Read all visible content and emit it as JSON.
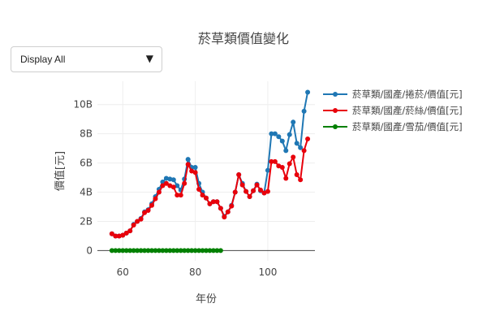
{
  "title": "菸草類價值變化",
  "dropdown": {
    "selected": "Display All",
    "arrow": "▼"
  },
  "chart_data": {
    "type": "line",
    "title": "菸草類價值變化",
    "xlabel": "年份",
    "ylabel": "價值[元]",
    "xlim": [
      53,
      113
    ],
    "ylim": [
      -700000000,
      11600000000
    ],
    "x_ticks": [
      60,
      80,
      100
    ],
    "y_ticks": [
      {
        "value": 0,
        "label": "0"
      },
      {
        "value": 2000000000,
        "label": "2B"
      },
      {
        "value": 4000000000,
        "label": "4B"
      },
      {
        "value": 6000000000,
        "label": "6B"
      },
      {
        "value": 8000000000,
        "label": "8B"
      },
      {
        "value": 10000000000,
        "label": "10B"
      }
    ],
    "grid": true,
    "legend_position": "right",
    "series": [
      {
        "name": "菸草類/國產/捲菸/價值[元]",
        "color": "#1f77b4",
        "points": [
          [
            57,
            1150000000
          ],
          [
            58,
            1000000000
          ],
          [
            59,
            1000000000
          ],
          [
            60,
            1050000000
          ],
          [
            61,
            1200000000
          ],
          [
            62,
            1350000000
          ],
          [
            63,
            1800000000
          ],
          [
            64,
            2000000000
          ],
          [
            65,
            2200000000
          ],
          [
            66,
            2650000000
          ],
          [
            67,
            2800000000
          ],
          [
            68,
            3200000000
          ],
          [
            69,
            3700000000
          ],
          [
            70,
            4200000000
          ],
          [
            71,
            4700000000
          ],
          [
            72,
            4950000000
          ],
          [
            73,
            4900000000
          ],
          [
            74,
            4850000000
          ],
          [
            75,
            4450000000
          ],
          [
            76,
            4150000000
          ],
          [
            77,
            4900000000
          ],
          [
            78,
            6250000000
          ],
          [
            79,
            5700000000
          ],
          [
            80,
            5700000000
          ],
          [
            81,
            4600000000
          ],
          [
            82,
            4000000000
          ],
          [
            83,
            3600000000
          ],
          [
            84,
            3200000000
          ],
          [
            85,
            3350000000
          ],
          [
            86,
            3350000000
          ],
          [
            87,
            2900000000
          ],
          [
            88,
            2350000000
          ],
          [
            89,
            2650000000
          ],
          [
            90,
            3100000000
          ],
          [
            91,
            4000000000
          ],
          [
            92,
            5200000000
          ],
          [
            93,
            4600000000
          ],
          [
            94,
            4050000000
          ],
          [
            95,
            3700000000
          ],
          [
            96,
            4100000000
          ],
          [
            97,
            4550000000
          ],
          [
            98,
            4100000000
          ],
          [
            99,
            3950000000
          ],
          [
            100,
            5500000000
          ],
          [
            101,
            8000000000
          ],
          [
            102,
            8000000000
          ],
          [
            103,
            7800000000
          ],
          [
            104,
            7500000000
          ],
          [
            105,
            6850000000
          ],
          [
            106,
            7950000000
          ],
          [
            107,
            8800000000
          ],
          [
            108,
            7350000000
          ],
          [
            109,
            7050000000
          ],
          [
            110,
            9550000000
          ],
          [
            111,
            10850000000
          ]
        ]
      },
      {
        "name": "菸草類/國產/菸絲/價值[元]",
        "color": "#e8000b",
        "points": [
          [
            57,
            1150000000
          ],
          [
            58,
            1000000000
          ],
          [
            59,
            1000000000
          ],
          [
            60,
            1050000000
          ],
          [
            61,
            1200000000
          ],
          [
            62,
            1350000000
          ],
          [
            63,
            1750000000
          ],
          [
            64,
            2000000000
          ],
          [
            65,
            2150000000
          ],
          [
            66,
            2600000000
          ],
          [
            67,
            2750000000
          ],
          [
            68,
            3100000000
          ],
          [
            69,
            3550000000
          ],
          [
            70,
            4000000000
          ],
          [
            71,
            4450000000
          ],
          [
            72,
            4600000000
          ],
          [
            73,
            4450000000
          ],
          [
            74,
            4350000000
          ],
          [
            75,
            3800000000
          ],
          [
            76,
            3800000000
          ],
          [
            77,
            4600000000
          ],
          [
            78,
            5900000000
          ],
          [
            79,
            5450000000
          ],
          [
            80,
            5350000000
          ],
          [
            81,
            4200000000
          ],
          [
            82,
            3800000000
          ],
          [
            83,
            3600000000
          ],
          [
            84,
            3200000000
          ],
          [
            85,
            3350000000
          ],
          [
            86,
            3350000000
          ],
          [
            87,
            2900000000
          ],
          [
            88,
            2300000000
          ],
          [
            89,
            2650000000
          ],
          [
            90,
            3050000000
          ],
          [
            91,
            4000000000
          ],
          [
            92,
            5200000000
          ],
          [
            93,
            4500000000
          ],
          [
            94,
            4050000000
          ],
          [
            95,
            3700000000
          ],
          [
            96,
            4100000000
          ],
          [
            97,
            4500000000
          ],
          [
            98,
            4150000000
          ],
          [
            99,
            3950000000
          ],
          [
            100,
            4050000000
          ],
          [
            101,
            6100000000
          ],
          [
            102,
            6100000000
          ],
          [
            103,
            5800000000
          ],
          [
            104,
            5700000000
          ],
          [
            105,
            4950000000
          ],
          [
            106,
            5950000000
          ],
          [
            107,
            6400000000
          ],
          [
            108,
            5200000000
          ],
          [
            109,
            4850000000
          ],
          [
            110,
            6850000000
          ],
          [
            111,
            7650000000
          ]
        ]
      },
      {
        "name": "菸草類/國產/雪茄/價值[元]",
        "color": "#008000",
        "points": [
          [
            57,
            0
          ],
          [
            58,
            0
          ],
          [
            59,
            0
          ],
          [
            60,
            0
          ],
          [
            61,
            0
          ],
          [
            62,
            0
          ],
          [
            63,
            0
          ],
          [
            64,
            0
          ],
          [
            65,
            0
          ],
          [
            66,
            0
          ],
          [
            67,
            0
          ],
          [
            68,
            0
          ],
          [
            69,
            0
          ],
          [
            70,
            0
          ],
          [
            71,
            0
          ],
          [
            72,
            0
          ],
          [
            73,
            0
          ],
          [
            74,
            0
          ],
          [
            75,
            0
          ],
          [
            76,
            0
          ],
          [
            77,
            0
          ],
          [
            78,
            0
          ],
          [
            79,
            0
          ],
          [
            80,
            0
          ],
          [
            81,
            0
          ],
          [
            82,
            0
          ],
          [
            83,
            0
          ],
          [
            84,
            0
          ],
          [
            85,
            0
          ],
          [
            86,
            0
          ],
          [
            87,
            0
          ]
        ]
      }
    ]
  }
}
